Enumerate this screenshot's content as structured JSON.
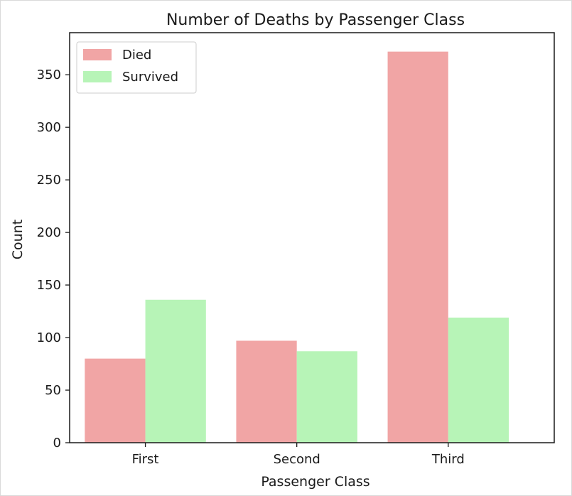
{
  "chart_data": {
    "type": "bar",
    "title": "Number of Deaths by Passenger Class",
    "xlabel": "Passenger Class",
    "ylabel": "Count",
    "categories": [
      "First",
      "Second",
      "Third"
    ],
    "series": [
      {
        "name": "Died",
        "values": [
          80,
          97,
          372
        ],
        "color": "#f1a5a5"
      },
      {
        "name": "Survived",
        "values": [
          136,
          87,
          119
        ],
        "color": "#b7f4b7"
      }
    ],
    "ylim": [
      0,
      390
    ],
    "yticks": [
      0,
      50,
      100,
      150,
      200,
      250,
      300,
      350
    ],
    "grid": false,
    "legend_position": "top-left"
  }
}
